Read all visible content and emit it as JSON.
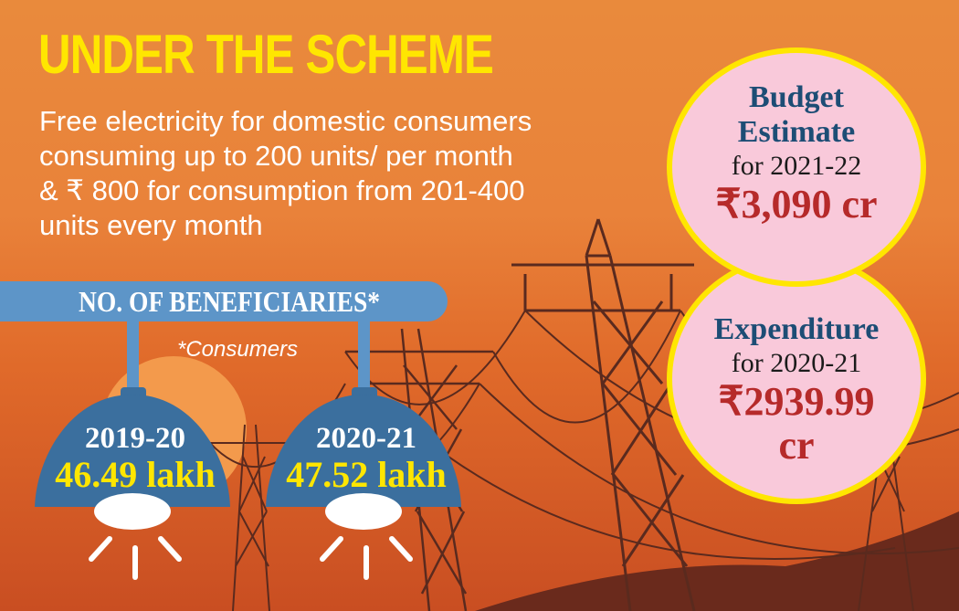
{
  "title": "UNDER THE SCHEME",
  "description": {
    "line1": "Free electricity for domestic consumers",
    "line2": "consuming up to 200 units/ per month",
    "line3": "& ₹ 800 for consumption from 201-400",
    "line4": "units every month"
  },
  "beneficiaries": {
    "heading": "NO. OF BENEFICIARIES*",
    "note": "*Consumers",
    "items": [
      {
        "year": "2019-20",
        "value": "46.49 lakh"
      },
      {
        "year": "2020-21",
        "value": "47.52 lakh"
      }
    ]
  },
  "budget": {
    "head1": "Budget",
    "head2": "Estimate",
    "sub": "for 2021-22",
    "value": "₹3,090 cr"
  },
  "expenditure": {
    "head": "Expenditure",
    "sub": "for 2020-21",
    "value1": "₹2939.99",
    "value2": "cr"
  },
  "colors": {
    "background": "#e9823a",
    "title": "#ffe600",
    "banner": "#5d95c8",
    "lamp": "#3b6f9e",
    "circle": "#f9c9da",
    "circle_border": "#ffe600",
    "value_red": "#b62a2a",
    "head_blue": "#1d4d75"
  }
}
